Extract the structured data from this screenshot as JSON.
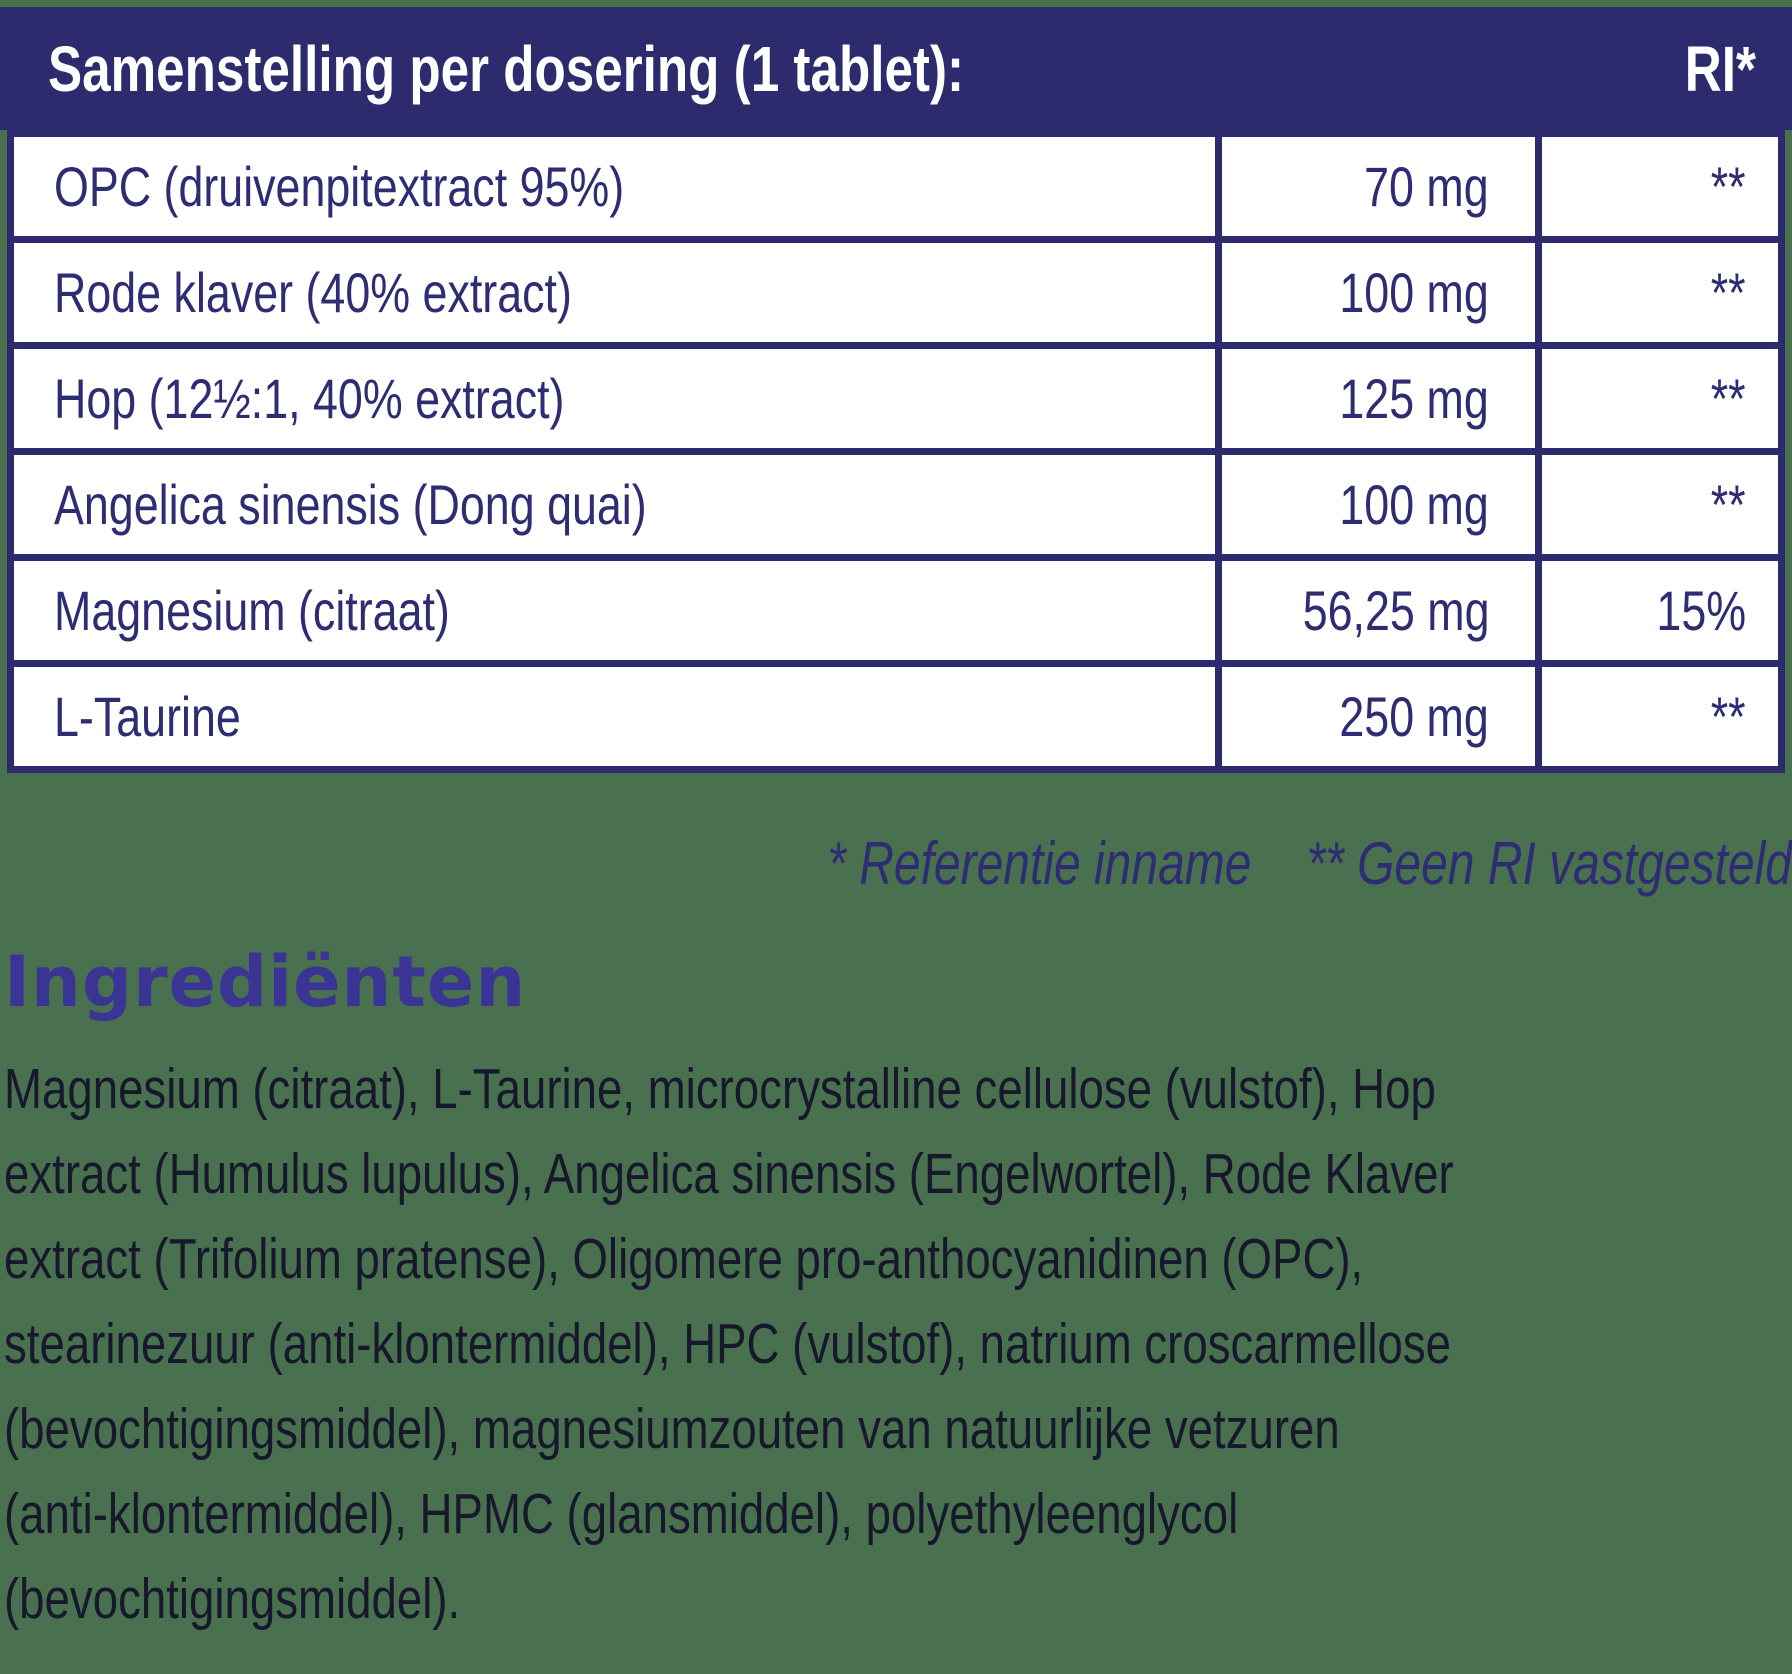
{
  "colors": {
    "background_green": "#49714f",
    "navy": "#2d2a6e",
    "table_row_white": "#ffffff",
    "table_text_navy": "#2e2c72",
    "heading_indigo": "#3a3494",
    "paragraph_text": "#18182c"
  },
  "header": {
    "title": "Samenstelling per dosering (1 tablet):",
    "ri_label": "RI*"
  },
  "table": {
    "rows": [
      {
        "name": "OPC (druivenpitextract 95%)",
        "amount": "70 mg",
        "ri": "**"
      },
      {
        "name": "Rode klaver (40% extract)",
        "amount": "100 mg",
        "ri": "**"
      },
      {
        "name": "Hop (12½:1, 40% extract)",
        "amount": "125 mg",
        "ri": "**"
      },
      {
        "name": "Angelica sinensis (Dong quai)",
        "amount": "100 mg",
        "ri": "**"
      },
      {
        "name": "Magnesium (citraat)",
        "amount": "56,25 mg",
        "ri": "15%"
      },
      {
        "name": "L-Taurine",
        "amount": "250 mg",
        "ri": "**"
      }
    ]
  },
  "footnotes": {
    "reference_intake": "* Referentie inname",
    "no_ri_established": "** Geen RI vastgesteld"
  },
  "ingredients": {
    "heading": "Ingrediënten",
    "lines": [
      "Magnesium (citraat), L-Taurine, microcrystalline cellulose (vulstof), Hop",
      "extract (Humulus lupulus), Angelica sinensis (Engelwortel), Rode Klaver",
      "extract (Trifolium pratense), Oligomere pro-anthocyanidinen (OPC),",
      "stearinezuur (anti-klontermiddel), HPC (vulstof), natrium croscarmellose",
      "(bevochtigingsmiddel), magnesiumzouten van natuurlijke vetzuren",
      "(anti-klontermiddel), HPMC (glansmiddel), polyethyleenglycol",
      "(bevochtigingsmiddel)."
    ]
  }
}
